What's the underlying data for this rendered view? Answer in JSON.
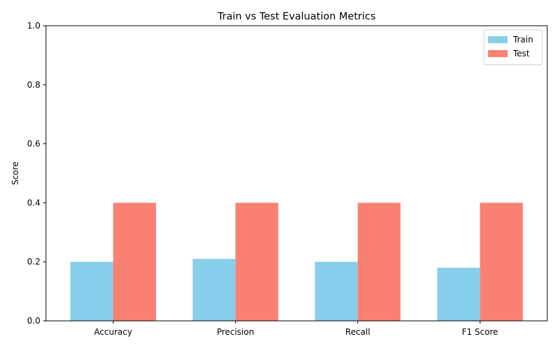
{
  "chart_data": {
    "type": "bar",
    "title": "Train vs Test Evaluation Metrics",
    "xlabel": "",
    "ylabel": "Score",
    "ylim": [
      0,
      1.0
    ],
    "yticks": [
      "0.0",
      "0.2",
      "0.4",
      "0.6",
      "0.8",
      "1.0"
    ],
    "categories": [
      "Accuracy",
      "Precision",
      "Recall",
      "F1 Score"
    ],
    "series": [
      {
        "name": "Train",
        "color": "#87ceeb",
        "values": [
          0.2,
          0.21,
          0.2,
          0.18
        ]
      },
      {
        "name": "Test",
        "color": "#fa8072",
        "values": [
          0.4,
          0.4,
          0.4,
          0.4
        ]
      }
    ],
    "legend_position": "top-right",
    "grid": false
  }
}
